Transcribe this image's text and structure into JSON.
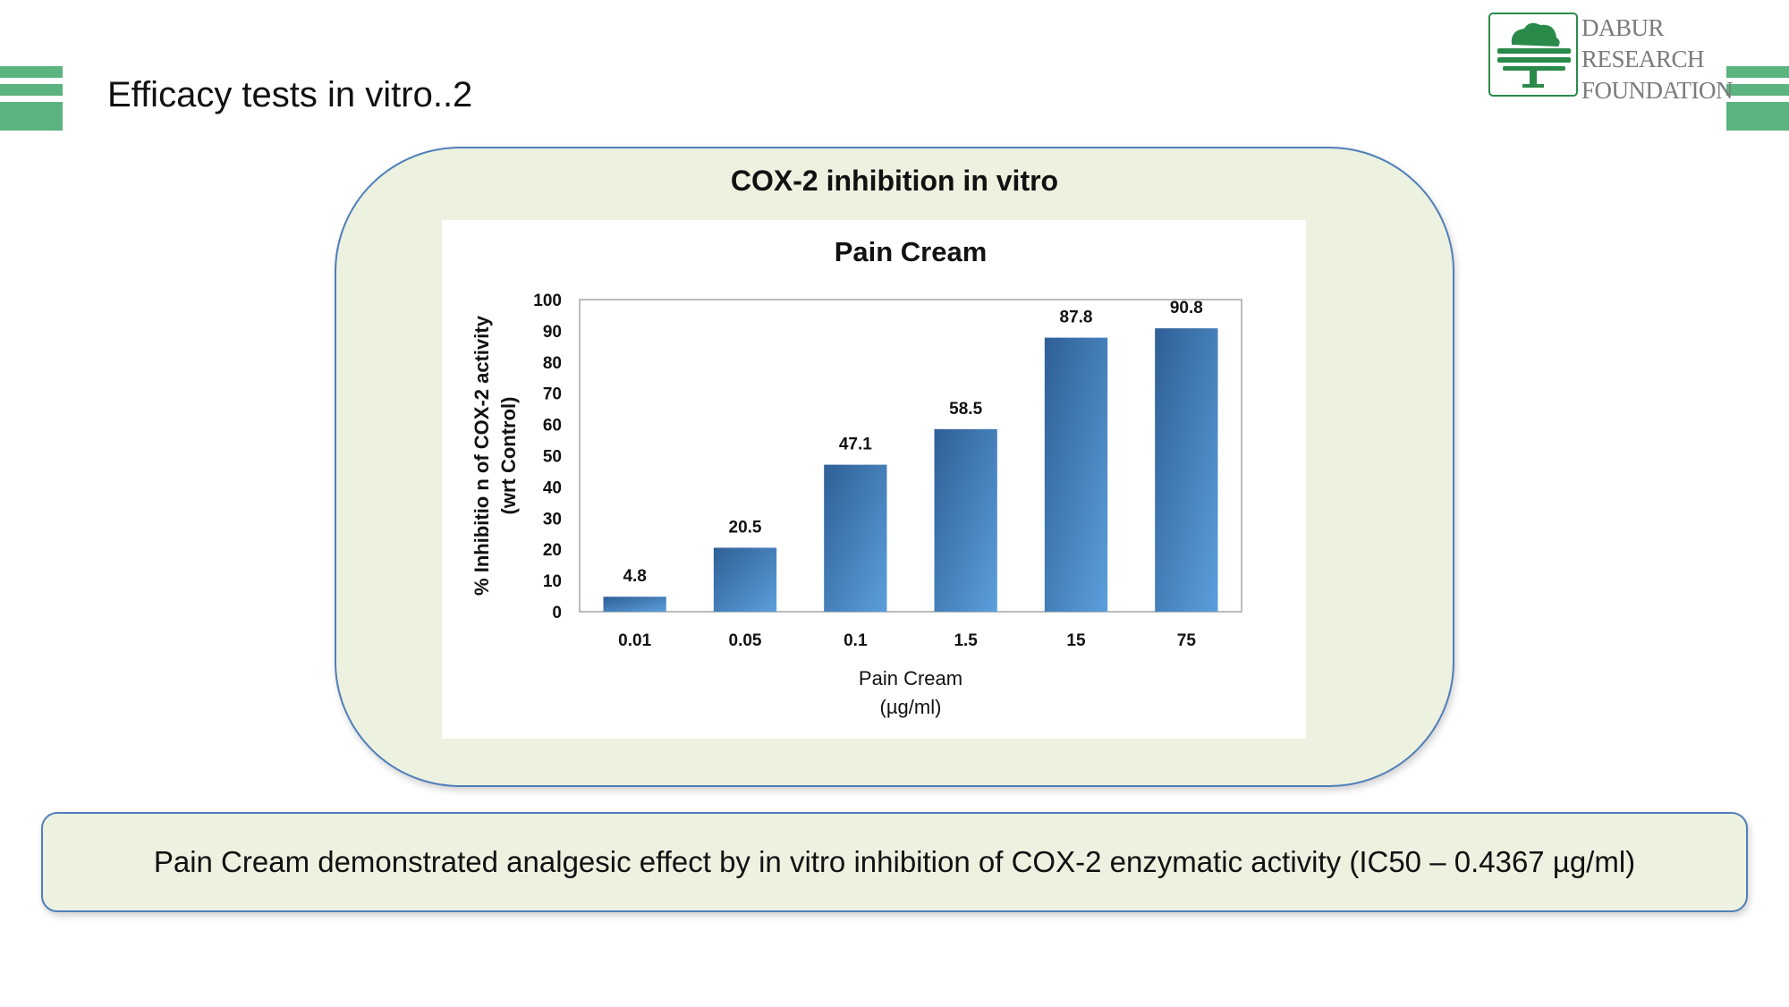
{
  "slide": {
    "title": "Efficacy tests in vitro..2"
  },
  "logo": {
    "lines": [
      "DABUR",
      "RESEARCH",
      "FOUNDATION"
    ],
    "brand_color": "#2a8a4a"
  },
  "panel": {
    "title": "COX-2 inhibition in vitro"
  },
  "conclusion": {
    "text": "Pain Cream demonstrated analgesic effect by in vitro inhibition of COX-2 enzymatic activity (IC50 – 0.4367 µg/ml)"
  },
  "colors": {
    "accent_green": "#5bb37f",
    "panel_fill": "#ecf1e0",
    "panel_border": "#4f7fba",
    "bar_dark": "#2f5f96",
    "bar_light": "#5b9fdc"
  },
  "chart_data": {
    "type": "bar",
    "title": "Pain Cream",
    "xlabel": [
      "Pain Cream",
      "(µg/ml)"
    ],
    "ylabel": [
      "% Inhibitio n of COX-2 activity",
      "(wrt Control)"
    ],
    "categories": [
      "0.01",
      "0.05",
      "0.1",
      "1.5",
      "15",
      "75"
    ],
    "values": [
      4.8,
      20.5,
      47.1,
      58.5,
      87.8,
      90.8
    ],
    "value_labels": [
      "4.8",
      "20.5",
      "47.1",
      "58.5",
      "87.8",
      "90.8"
    ],
    "ylim": [
      0,
      100
    ],
    "yticks": [
      0,
      10,
      20,
      30,
      40,
      50,
      60,
      70,
      80,
      90,
      100
    ],
    "grid": false,
    "legend": "none"
  }
}
